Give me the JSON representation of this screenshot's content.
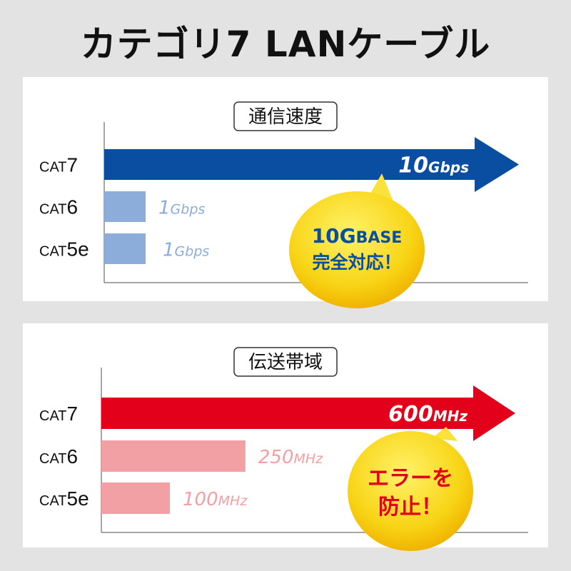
{
  "title": "カテゴリ7 LANケーブル",
  "chart_data": [
    {
      "type": "bar",
      "orientation": "horizontal",
      "title": "通信速度",
      "categories": [
        {
          "prefix": "CAT",
          "suffix": "7"
        },
        {
          "prefix": "CAT",
          "suffix": "6"
        },
        {
          "prefix": "CAT",
          "suffix": "5e"
        }
      ],
      "values": [
        10,
        1,
        1
      ],
      "unit": "Gbps",
      "labels": [
        {
          "num": "10",
          "unit": "Gbps"
        },
        {
          "num": "1",
          "unit": "Gbps"
        },
        {
          "num": "1",
          "unit": "Gbps"
        }
      ],
      "colors": {
        "highlight": "#0a4ea2",
        "other": "#8cadda",
        "bubble": "#f7d21a",
        "bubble_text": "#0a4ea2"
      },
      "callout": {
        "line1_num": "10G",
        "line1_rest": "BASE",
        "line2": "完全対応！"
      }
    },
    {
      "type": "bar",
      "orientation": "horizontal",
      "title": "伝送帯域",
      "categories": [
        {
          "prefix": "CAT",
          "suffix": "7"
        },
        {
          "prefix": "CAT",
          "suffix": "6"
        },
        {
          "prefix": "CAT",
          "suffix": "5e"
        }
      ],
      "values": [
        600,
        250,
        100
      ],
      "unit": "MHz",
      "labels": [
        {
          "num": "600",
          "unit": "MHz"
        },
        {
          "num": "250",
          "unit": "MHz"
        },
        {
          "num": "100",
          "unit": "MHz"
        }
      ],
      "colors": {
        "highlight": "#e2001a",
        "other": "#f2a0a3",
        "bubble": "#f7d21a",
        "bubble_text": "#e2001a"
      },
      "callout": {
        "line1": "エラーを",
        "line2": "防止！"
      }
    }
  ]
}
